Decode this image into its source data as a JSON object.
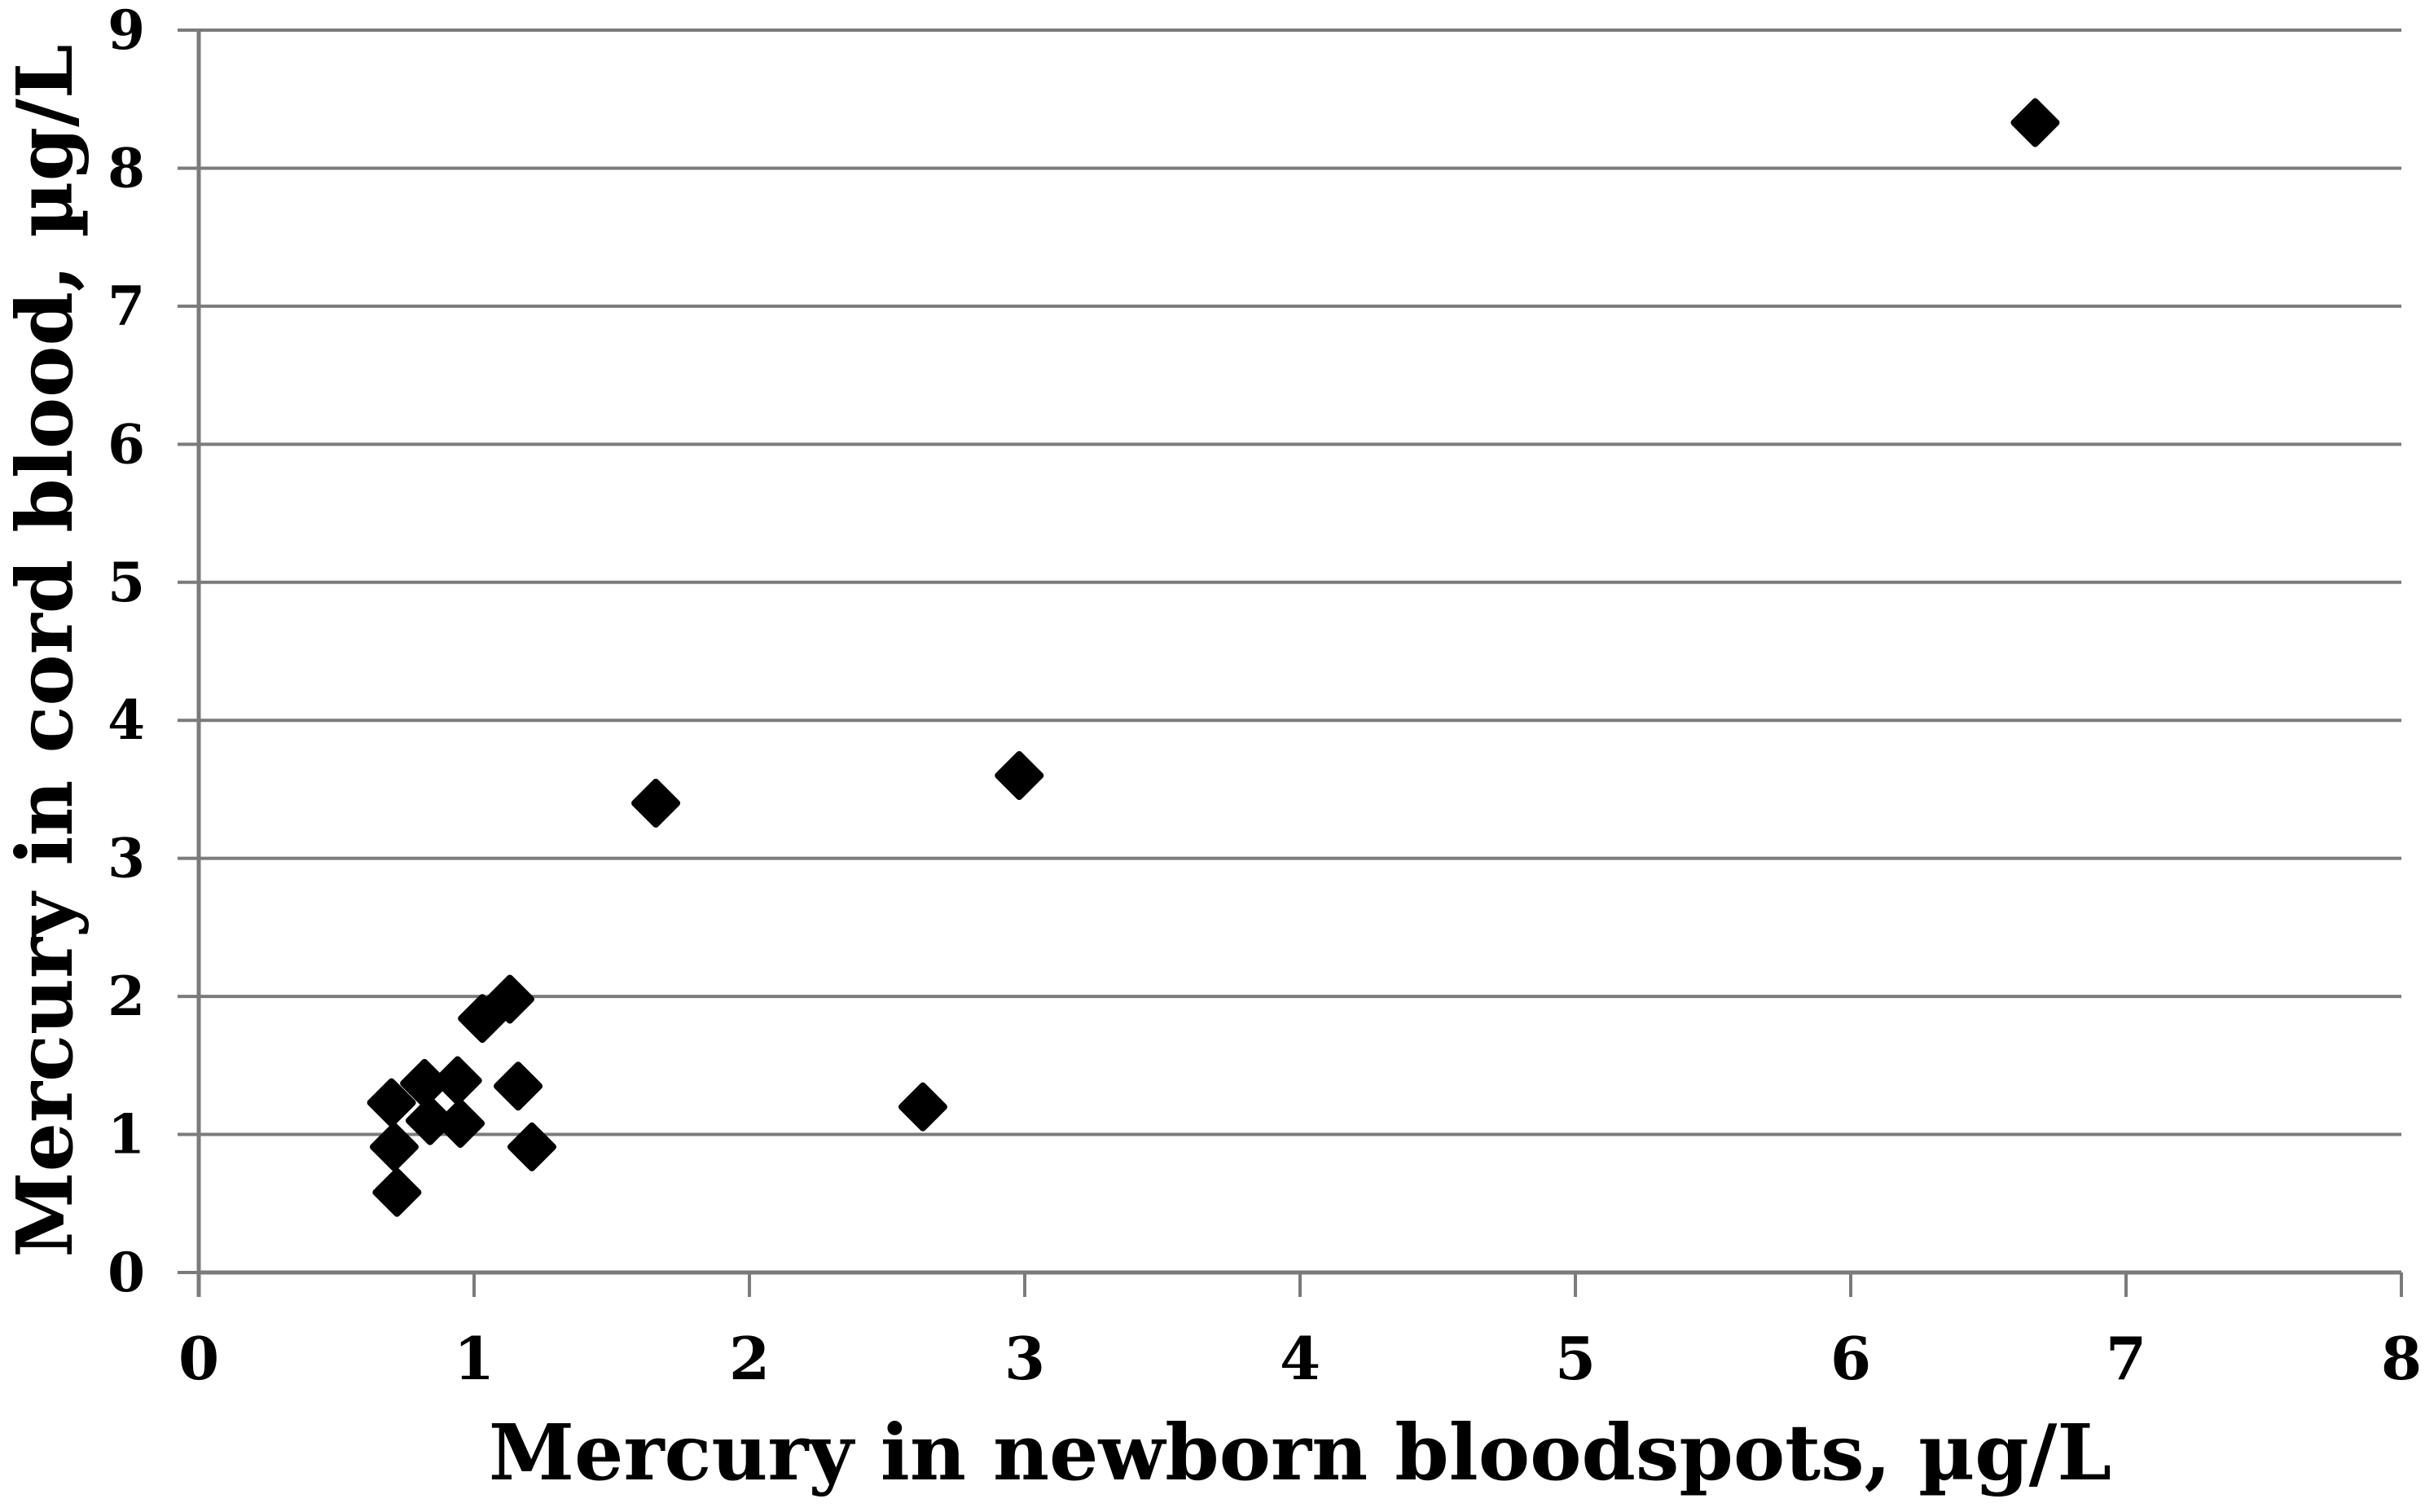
{
  "figure": {
    "background": "#ffffff"
  },
  "chart_data": {
    "type": "scatter",
    "title": "",
    "xlabel": "Mercury in newborn bloodspots, µg/L",
    "ylabel": "Mercury in cord blood, µg/L",
    "xlim": [
      0,
      8
    ],
    "ylim": [
      0,
      9
    ],
    "xticks": [
      "0",
      "1",
      "2",
      "3",
      "4",
      "5",
      "6",
      "7",
      "8"
    ],
    "yticks": [
      "0",
      "1",
      "2",
      "3",
      "4",
      "5",
      "6",
      "7",
      "8",
      "9"
    ],
    "grid": "horizontal-only",
    "legend_position": "none",
    "marker_shape": "diamond",
    "marker_color": "#000000",
    "axis_color": "#7b7b7b",
    "points": [
      {
        "x": 0.7,
        "y": 1.23
      },
      {
        "x": 0.71,
        "y": 0.91
      },
      {
        "x": 0.72,
        "y": 0.58
      },
      {
        "x": 0.82,
        "y": 1.37
      },
      {
        "x": 0.84,
        "y": 1.1
      },
      {
        "x": 0.94,
        "y": 1.39
      },
      {
        "x": 0.95,
        "y": 1.08
      },
      {
        "x": 1.03,
        "y": 1.84
      },
      {
        "x": 1.13,
        "y": 1.98
      },
      {
        "x": 1.16,
        "y": 1.35
      },
      {
        "x": 1.21,
        "y": 0.91
      },
      {
        "x": 1.66,
        "y": 3.4
      },
      {
        "x": 2.63,
        "y": 1.2
      },
      {
        "x": 2.98,
        "y": 3.6
      },
      {
        "x": 6.67,
        "y": 8.33
      }
    ]
  }
}
